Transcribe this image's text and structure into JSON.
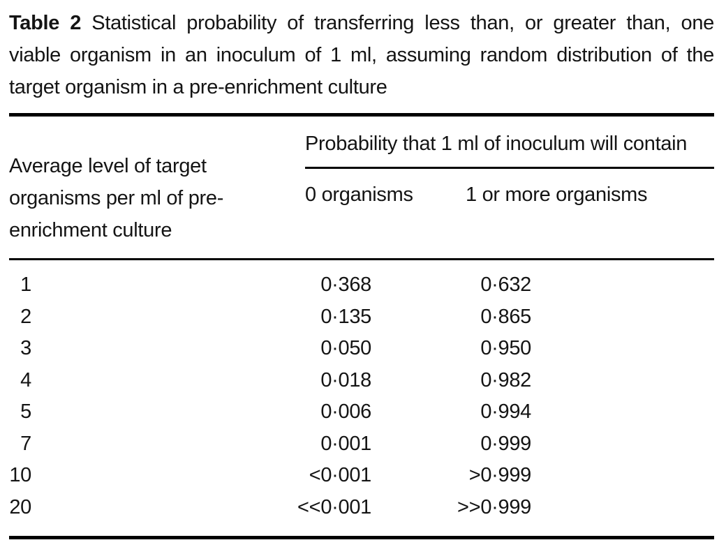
{
  "caption": {
    "label": "Table 2",
    "text": "Statistical probability of transferring less than, or greater than, one viable organism in an inoculum of 1 ml, assuming random distribution of the target organism in a pre-enrichment culture"
  },
  "table": {
    "row_header": "Average level of target organisms per ml of pre-enrichment culture",
    "span_header": "Probability that 1 ml of inoculum will contain",
    "sub_headers": [
      "0 organisms",
      "1 or more organisms"
    ],
    "rows": [
      {
        "level": "1",
        "p_zero": "0·368",
        "p_one_or_more": "0·632"
      },
      {
        "level": "2",
        "p_zero": "0·135",
        "p_one_or_more": "0·865"
      },
      {
        "level": "3",
        "p_zero": "0·050",
        "p_one_or_more": "0·950"
      },
      {
        "level": "4",
        "p_zero": "0·018",
        "p_one_or_more": "0·982"
      },
      {
        "level": "5",
        "p_zero": "0·006",
        "p_one_or_more": "0·994"
      },
      {
        "level": "7",
        "p_zero": "0·001",
        "p_one_or_more": "0·999"
      },
      {
        "level": "10",
        "p_zero": "<0·001",
        "p_one_or_more": ">0·999"
      },
      {
        "level": "20",
        "p_zero": "<<0·001",
        "p_one_or_more": ">>0·999"
      }
    ],
    "colors": {
      "background": "#ffffff",
      "text": "#141414",
      "rule": "#000000"
    }
  }
}
